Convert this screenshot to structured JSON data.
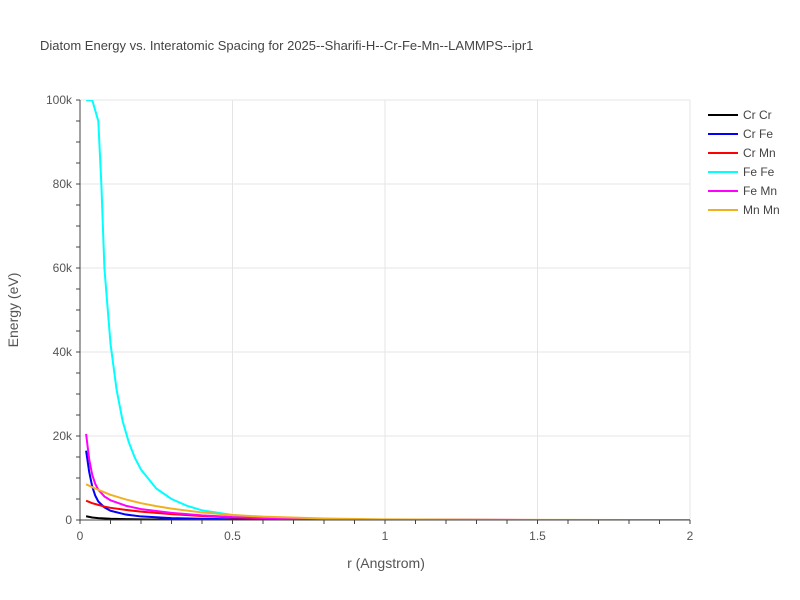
{
  "chart_data": {
    "type": "line",
    "title": "Diatom Energy vs. Interatomic Spacing for 2025--Sharifi-H--Cr-Fe-Mn--LAMMPS--ipr1",
    "xlabel": "r (Angstrom)",
    "ylabel": "Energy (eV)",
    "xlim": [
      0,
      2
    ],
    "ylim": [
      0,
      100000
    ],
    "xticks": [
      0,
      0.5,
      1,
      1.5,
      2
    ],
    "xtick_labels": [
      "0",
      "0.5",
      "1",
      "1.5",
      "2"
    ],
    "yticks": [
      0,
      20000,
      40000,
      60000,
      80000,
      100000
    ],
    "ytick_labels": [
      "0",
      "20k",
      "40k",
      "60k",
      "80k",
      "100k"
    ],
    "grid": true,
    "legend_position": "top-right",
    "series": [
      {
        "name": "Cr Cr",
        "color": "#000000",
        "points": [
          [
            0.02,
            900
          ],
          [
            0.04,
            600
          ],
          [
            0.06,
            450
          ],
          [
            0.1,
            300
          ],
          [
            0.15,
            200
          ],
          [
            0.2,
            150
          ],
          [
            0.3,
            90
          ],
          [
            0.5,
            40
          ],
          [
            0.8,
            10
          ],
          [
            1.0,
            0
          ],
          [
            1.5,
            0
          ],
          [
            2.0,
            0
          ]
        ]
      },
      {
        "name": "Cr Fe",
        "color": "#0000ff",
        "points": [
          [
            0.02,
            16500
          ],
          [
            0.03,
            11500
          ],
          [
            0.04,
            8000
          ],
          [
            0.05,
            5800
          ],
          [
            0.06,
            4400
          ],
          [
            0.08,
            3000
          ],
          [
            0.1,
            2200
          ],
          [
            0.15,
            1300
          ],
          [
            0.2,
            850
          ],
          [
            0.3,
            450
          ],
          [
            0.5,
            150
          ],
          [
            0.7,
            40
          ],
          [
            1.0,
            0
          ],
          [
            1.5,
            0
          ],
          [
            2.0,
            0
          ]
        ]
      },
      {
        "name": "Cr Mn",
        "color": "#ff0000",
        "points": [
          [
            0.02,
            4600
          ],
          [
            0.04,
            4000
          ],
          [
            0.06,
            3600
          ],
          [
            0.08,
            3200
          ],
          [
            0.1,
            2900
          ],
          [
            0.15,
            2400
          ],
          [
            0.2,
            2000
          ],
          [
            0.3,
            1400
          ],
          [
            0.4,
            950
          ],
          [
            0.5,
            600
          ],
          [
            0.7,
            250
          ],
          [
            1.0,
            60
          ],
          [
            1.5,
            0
          ],
          [
            2.0,
            0
          ]
        ]
      },
      {
        "name": "Fe Fe",
        "color": "#00ffff",
        "points": [
          [
            0.02,
            100000
          ],
          [
            0.04,
            100000
          ],
          [
            0.06,
            95000
          ],
          [
            0.07,
            80000
          ],
          [
            0.08,
            60000
          ],
          [
            0.1,
            42000
          ],
          [
            0.12,
            31000
          ],
          [
            0.14,
            23500
          ],
          [
            0.16,
            18500
          ],
          [
            0.18,
            14800
          ],
          [
            0.2,
            12000
          ],
          [
            0.25,
            7500
          ],
          [
            0.3,
            5000
          ],
          [
            0.35,
            3400
          ],
          [
            0.4,
            2300
          ],
          [
            0.5,
            1200
          ],
          [
            0.6,
            600
          ],
          [
            0.7,
            300
          ],
          [
            0.8,
            150
          ],
          [
            1.0,
            30
          ],
          [
            1.5,
            0
          ],
          [
            2.0,
            0
          ]
        ]
      },
      {
        "name": "Fe Mn",
        "color": "#ff00ff",
        "points": [
          [
            0.02,
            20500
          ],
          [
            0.03,
            14500
          ],
          [
            0.04,
            10800
          ],
          [
            0.05,
            8600
          ],
          [
            0.06,
            7200
          ],
          [
            0.08,
            5600
          ],
          [
            0.1,
            4700
          ],
          [
            0.15,
            3400
          ],
          [
            0.2,
            2600
          ],
          [
            0.3,
            1700
          ],
          [
            0.4,
            1100
          ],
          [
            0.5,
            700
          ],
          [
            0.7,
            300
          ],
          [
            1.0,
            80
          ],
          [
            1.5,
            0
          ],
          [
            2.0,
            0
          ]
        ]
      },
      {
        "name": "Mn Mn",
        "color": "#f0b020",
        "points": [
          [
            0.02,
            8500
          ],
          [
            0.05,
            7500
          ],
          [
            0.08,
            6600
          ],
          [
            0.1,
            6000
          ],
          [
            0.15,
            4900
          ],
          [
            0.2,
            4000
          ],
          [
            0.25,
            3300
          ],
          [
            0.3,
            2700
          ],
          [
            0.4,
            1800
          ],
          [
            0.5,
            1200
          ],
          [
            0.6,
            800
          ],
          [
            0.8,
            350
          ],
          [
            1.0,
            150
          ],
          [
            1.5,
            20
          ],
          [
            2.0,
            0
          ]
        ]
      }
    ]
  }
}
